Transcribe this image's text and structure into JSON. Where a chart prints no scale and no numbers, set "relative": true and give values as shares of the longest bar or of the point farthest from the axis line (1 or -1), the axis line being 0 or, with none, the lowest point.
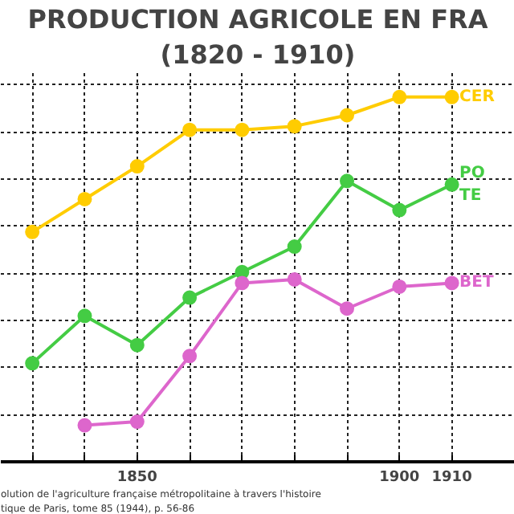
{
  "chart_data": {
    "type": "line",
    "title": "PRODUCTION AGRICOLE EN FRA",
    "subtitle": "(1820 - 1910)",
    "relative": true,
    "marker": "circle",
    "grid": true,
    "legend": false,
    "x": [
      1830,
      1840,
      1850,
      1860,
      1870,
      1880,
      1890,
      1900,
      1910
    ],
    "xlim": [
      1824,
      1922
    ],
    "xticks": [
      {
        "value": 1830,
        "label": null
      },
      {
        "value": 1840,
        "label": null
      },
      1850,
      {
        "value": 1860,
        "label": null
      },
      {
        "value": 1870,
        "label": null
      },
      {
        "value": 1880,
        "label": null
      },
      {
        "value": 1890,
        "label": null
      },
      1900,
      1910
    ],
    "tick_labels": "x",
    "series": [
      {
        "name": "CER",
        "color": "#ffcc00",
        "values": [
          0.63,
          0.72,
          0.81,
          0.91,
          0.91,
          0.92,
          0.95,
          1,
          1
        ]
      },
      {
        "name": "PO\nTE",
        "color": "#44cc44",
        "values": [
          0.27,
          0.4,
          0.32,
          0.45,
          0.52,
          0.59,
          0.77,
          0.69,
          0.76
        ]
      },
      {
        "name": "BET",
        "color": "#dd66cc",
        "x": [
          1840,
          1850,
          1860,
          1870,
          1880,
          1890,
          1900,
          1910
        ],
        "values": [
          0.1,
          0.11,
          0.29,
          0.49,
          0.5,
          0.42,
          0.48,
          0.49
        ]
      }
    ],
    "annotations": [
      "olution de l'agriculture française métropolitaine à travers l'histoire",
      "tique de Paris, tome 85 (1944), p. 56-86"
    ]
  }
}
